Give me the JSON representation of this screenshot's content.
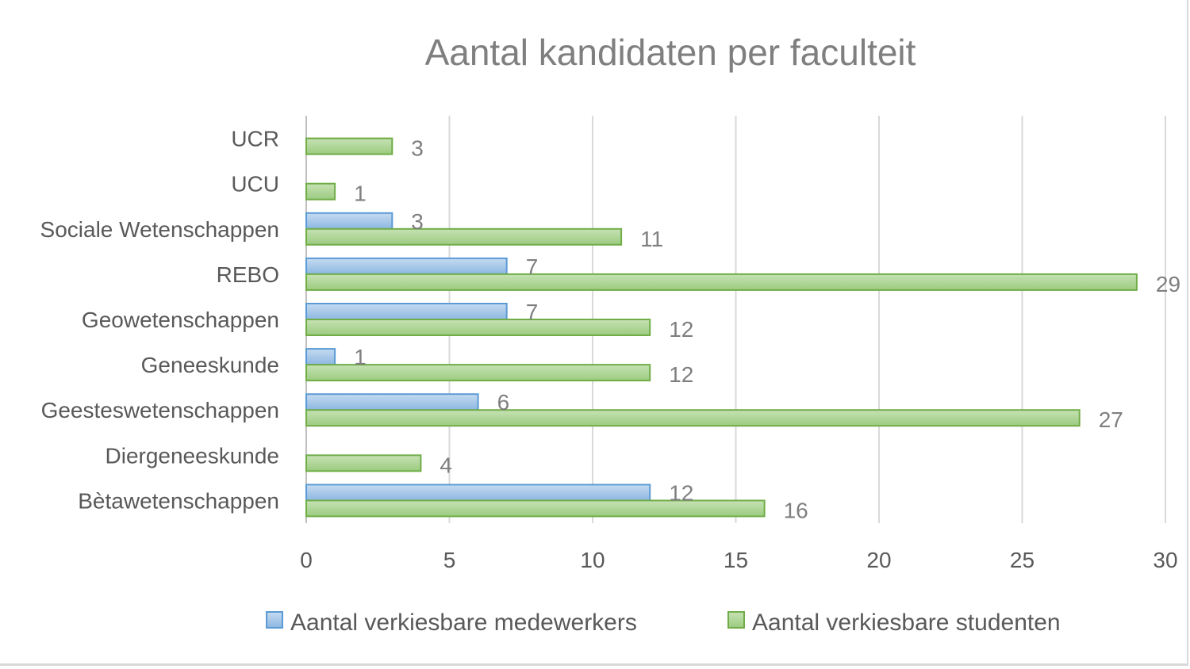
{
  "chart_data": {
    "type": "bar",
    "orientation": "horizontal",
    "title": "Aantal kandidaten per faculteit",
    "categories": [
      "Bètawetenschappen",
      "Diergeneeskunde",
      "Geesteswetenschappen",
      "Geneeskunde",
      "Geowetenschappen",
      "REBO",
      "Sociale Wetenschappen",
      "UCU",
      "UCR"
    ],
    "series": [
      {
        "name": "Aantal verkiesbare medewerkers",
        "values": [
          12,
          null,
          6,
          1,
          7,
          7,
          3,
          null,
          null
        ],
        "color": "#9dc3e6",
        "border_color": "#5b9bd5"
      },
      {
        "name": "Aantal verkiesbare studenten",
        "values": [
          16,
          4,
          27,
          12,
          12,
          29,
          11,
          1,
          3
        ],
        "color": "#a9d18e",
        "border_color": "#70ad47"
      }
    ],
    "xlim": [
      0,
      30
    ],
    "xticks": [
      0,
      5,
      10,
      15,
      20,
      25,
      30
    ],
    "grid": true,
    "legend_position": "bottom",
    "data_labels": true
  }
}
